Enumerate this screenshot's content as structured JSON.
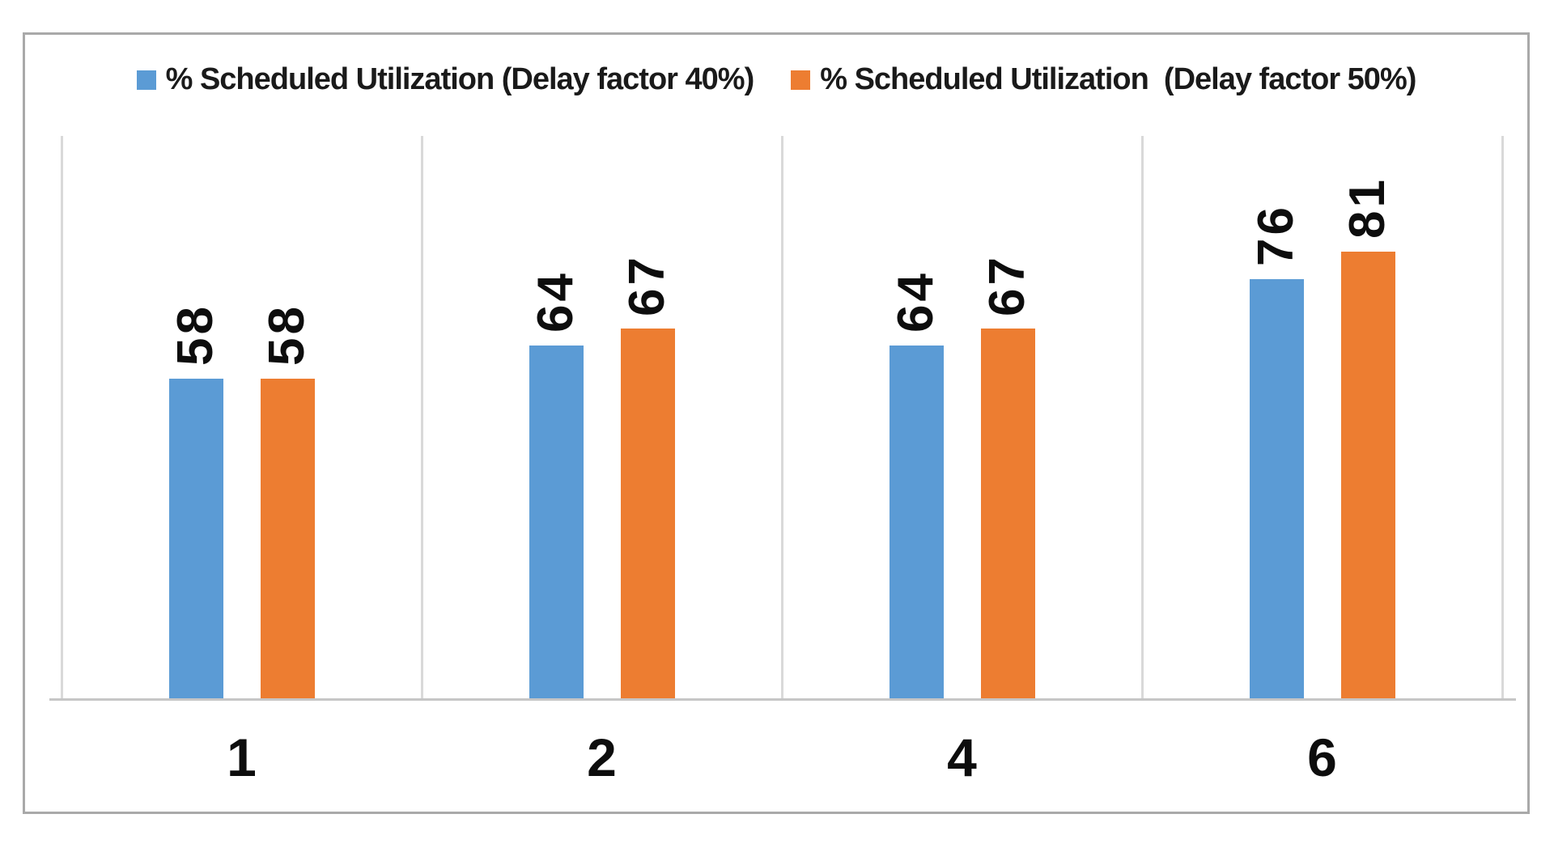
{
  "chart_data": {
    "type": "bar",
    "title": "",
    "categories": [
      "1",
      "2",
      "4",
      "6"
    ],
    "series": [
      {
        "name": "% Scheduled Utilization (Delay factor 40%)",
        "color": "#5B9BD5",
        "values": [
          58,
          64,
          64,
          76
        ]
      },
      {
        "name": "% Scheduled Utilization  (Delay factor 50%)",
        "color": "#ED7D31",
        "values": [
          58,
          67,
          67,
          81
        ]
      }
    ],
    "xlabel": "",
    "ylabel": "",
    "ylim": [
      0,
      102
    ],
    "y_axis_visible": false,
    "grid": "vertical-category-separators",
    "gridline_color": "#D9D9D9",
    "axis_line_color": "#C6C6C6",
    "frame_border_color": "#A9A9A9",
    "legend_position": "top",
    "data_labels": {
      "rotation": -90,
      "color": "#0D0D0D"
    }
  }
}
